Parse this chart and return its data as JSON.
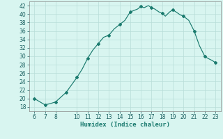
{
  "line_x": [
    6,
    7,
    7.5,
    8,
    9,
    10,
    10.5,
    11,
    11.5,
    12,
    12.5,
    13,
    13.5,
    14,
    14.5,
    15,
    15.3,
    15.7,
    16,
    16.3,
    16.7,
    17,
    17.3,
    17.7,
    18,
    18.3,
    18.7,
    19,
    19.3,
    19.7,
    20,
    20.5,
    21,
    21.5,
    22,
    22.3,
    22.7,
    23
  ],
  "line_y": [
    20,
    18.5,
    18.8,
    19.2,
    21.5,
    25,
    27,
    29.5,
    31.5,
    33,
    34.5,
    35,
    36.5,
    37.5,
    38.5,
    40.5,
    40.8,
    41.2,
    41.8,
    41.5,
    42,
    41.5,
    41.2,
    40.5,
    40.2,
    39.5,
    40.5,
    41,
    40.5,
    39.8,
    39.5,
    38.5,
    36,
    32.5,
    30,
    29.5,
    29,
    28.5
  ],
  "marker_x": [
    6,
    7,
    8,
    9,
    10,
    11,
    12,
    13,
    14,
    15,
    16,
    17,
    18,
    19,
    20,
    21,
    22,
    23
  ],
  "marker_y": [
    20,
    18.5,
    19.2,
    21.5,
    25,
    29.5,
    33,
    35,
    37.5,
    40.5,
    41.8,
    41.5,
    40.2,
    41,
    39.5,
    36,
    30,
    28.5
  ],
  "line_color": "#1a7a6e",
  "bg_color": "#d8f5f0",
  "grid_color": "#b8ddd8",
  "xlabel": "Humidex (Indice chaleur)",
  "xlim": [
    5.5,
    23.5
  ],
  "ylim": [
    17,
    43
  ],
  "xticks": [
    6,
    7,
    8,
    10,
    11,
    12,
    13,
    14,
    15,
    16,
    17,
    18,
    19,
    20,
    21,
    22,
    23
  ],
  "yticks": [
    18,
    20,
    22,
    24,
    26,
    28,
    30,
    32,
    34,
    36,
    38,
    40,
    42
  ],
  "tick_fontsize": 5.5,
  "xlabel_fontsize": 6.5
}
